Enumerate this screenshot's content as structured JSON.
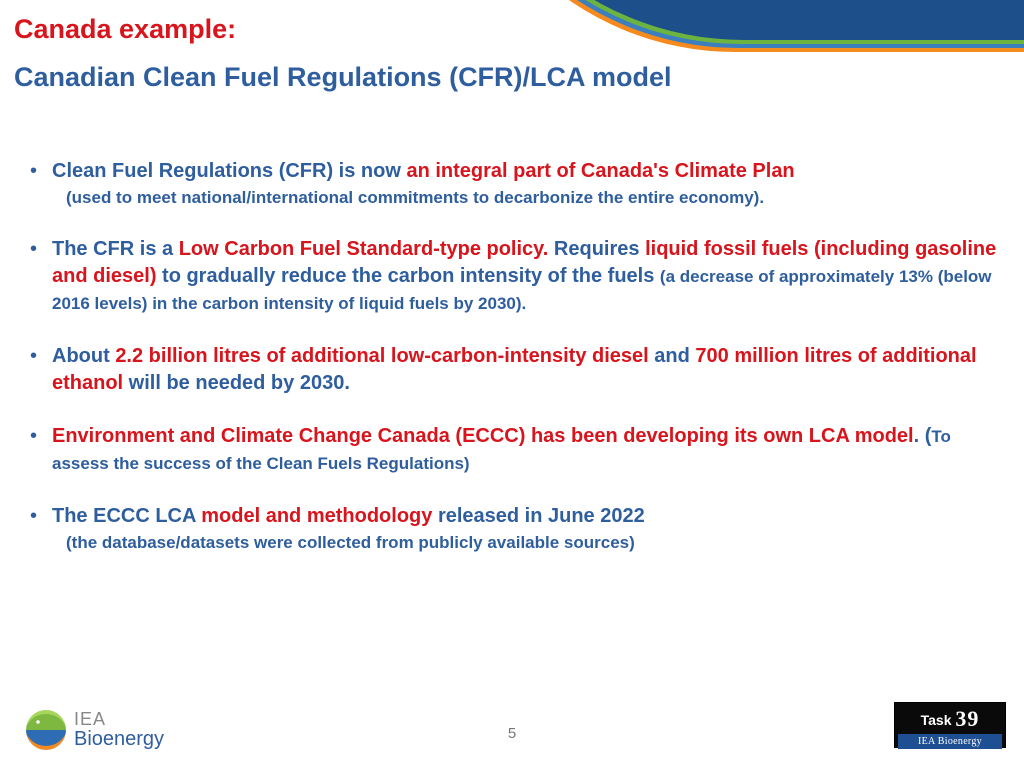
{
  "colors": {
    "blue": "#2f5e9e",
    "red": "#d8141c",
    "gray": "#777777",
    "swoosh_dark": "#1d4f8b",
    "swoosh_green": "#6db33f",
    "swoosh_blue": "#3b7fbf",
    "swoosh_orange": "#f58b1f"
  },
  "title": {
    "red": "Canada example:",
    "blue": "Canadian Clean Fuel Regulations (CFR)/LCA model"
  },
  "bullets": {
    "b1": {
      "p1": "Clean Fuel Regulations (CFR) is now ",
      "p2": "an integral part of Canada's Climate Plan",
      "sub": "(used to meet national/international commitments to decarbonize the entire economy)."
    },
    "b2": {
      "p1": "The CFR is a ",
      "p2": "Low Carbon Fuel Standard-type policy. ",
      "p3": "Requires ",
      "p4": "liquid fossil fuels (including gasoline and diesel) ",
      "p5": "to gradually reduce the carbon intensity of the fuels ",
      "sub": "(a decrease of approximately 13% (below 2016 levels) in the carbon intensity of liquid fuels by 2030)."
    },
    "b3": {
      "p1": "About ",
      "p2": "2.2 billion litres of additional low-carbon-intensity diesel ",
      "p3": "and ",
      "p4": "700 million litres of additional ethanol ",
      "p5": "will be needed by 2030."
    },
    "b4": {
      "p1": "Environment and Climate Change Canada (ECCC) has been developing its own LCA model",
      "p2": ". (",
      "sub": "To assess the success of the Clean Fuels Regulations)"
    },
    "b5": {
      "p1": "The ECCC LCA ",
      "p2": "model and methodology ",
      "p3": "released in June 2022",
      "sub": "(the database/datasets were collected from publicly available sources)"
    }
  },
  "footer": {
    "page": "5",
    "logo_left_l1": "IEA",
    "logo_left_l2": "Bioenergy",
    "logo_right_task": "Task ",
    "logo_right_num": "39",
    "logo_right_sub": "IEA Bioenergy"
  }
}
